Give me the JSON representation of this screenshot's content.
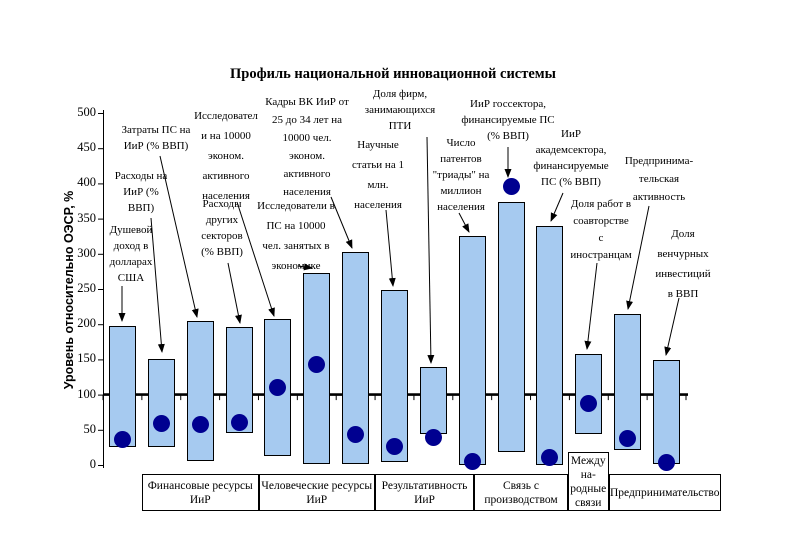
{
  "title": "Профиль национальной инновационной системы",
  "chart_data": {
    "type": "bar",
    "subtype": "floating-range-bars-with-dot-markers",
    "title": "Профиль национальной инновационной системы",
    "xlabel": "",
    "ylabel": "Уровень относительно ОЭСР, %",
    "ylim": [
      0,
      500
    ],
    "yticks": [
      0,
      50,
      100,
      150,
      200,
      250,
      300,
      350,
      400,
      450,
      500
    ],
    "reference_line": 100,
    "grid": false,
    "legend": false,
    "colors": {
      "bar_fill": "#A6CAF0",
      "bar_border": "#000000",
      "dot": "#000090",
      "axis": "#000000"
    },
    "indicators": [
      {
        "label": "Душевой доход в долларах США",
        "label_lines": "Душевой\nдоход в\nдолларах\nСША",
        "range_low": 25,
        "range_high": 197,
        "value": 36
      },
      {
        "label": "Расходы на ИиР (% ВВП)",
        "label_lines": "Расходы на\nИиР (%\nВВП)",
        "range_low": 26,
        "range_high": 150,
        "value": 59
      },
      {
        "label": "Затраты ПС на ИиР (% ВВП)",
        "label_lines": "Затраты ПС на\nИиР (% ВВП)",
        "range_low": 5,
        "range_high": 205,
        "value": 57
      },
      {
        "label": "Расходы других секторов (% ВВП)",
        "label_lines": "Расходы\nдругих\nсекторов\n(% ВВП)",
        "range_low": 46,
        "range_high": 196,
        "value": 60
      },
      {
        "label": "Исследователи на 10000 эконом. активного населения",
        "label_lines": "Исследовател\nи на 10000\nэконом.\nактивного\nнаселения",
        "range_low": 13,
        "range_high": 207,
        "value": 110
      },
      {
        "label": "Исследователи в ПС на 10000 чел. занятых в экономике",
        "label_lines": "Исследователи в\nПС на 10000\nчел. занятых в\nэкономике",
        "range_low": 1,
        "range_high": 273,
        "value": 143
      },
      {
        "label": "Кадры ВК ИиР от 25 до 34 лет на 10000 чел. эконом. активного населения",
        "label_lines": "Кадры ВК ИиР от\n25 до 34 лет на\n10000 чел.\nэконом.\nактивного\nнаселения",
        "range_low": 1,
        "range_high": 302,
        "value": 43
      },
      {
        "label": "Научные статьи на 1 млн. населения",
        "label_lines": "Научные\nстатьи на 1\nмлн.\nнаселения",
        "range_low": 4,
        "range_high": 248,
        "value": 26
      },
      {
        "label": "Доля фирм, занимающихся ПТИ",
        "label_lines": "Доля фирм,\nзанимающихся\nПТИ",
        "range_low": 44,
        "range_high": 139,
        "value": 39
      },
      {
        "label": "Число патентов \"триады\" на миллион населения",
        "label_lines": "Число\nпатентов\n\"триады\" на\nмиллион\nнаселения",
        "range_low": 0,
        "range_high": 325,
        "value": 5
      },
      {
        "label": "ИиР госсектора, финансируемые ПС (% ВВП)",
        "label_lines": "ИиР госсектора,\nфинансируемые ПС\n(% ВВП)",
        "range_low": 19,
        "range_high": 373,
        "value": 396
      },
      {
        "label": "ИиР академсектора, финансируемые ПС (% ВВП)",
        "label_lines": "ИиР\nакадемсектора,\nфинансируемые\nПС (% ВВП)",
        "range_low": 0,
        "range_high": 340,
        "value": 10
      },
      {
        "label": "Доля работ в соавторстве с иностранцами",
        "label_lines": "Доля работ в\nсоавторстве\nс\nиностранцам",
        "range_low": 44,
        "range_high": 158,
        "value": 87
      },
      {
        "label": "Предпринимательская активность",
        "label_lines": "Предпринима-\nтельская\nактивность",
        "range_low": 22,
        "range_high": 214,
        "value": 37
      },
      {
        "label": "Доля венчурных инвестиций в ВВП",
        "label_lines": "Доля\nвенчурных\nинвестиций\nв ВВП",
        "range_low": 2,
        "range_high": 149,
        "value": 4
      }
    ],
    "groups": [
      {
        "label": "Финансовые ресурсы ИиР",
        "label_lines": "Финансовые ресурсы\nИиР",
        "indicator_indexes": [
          2,
          3,
          4
        ]
      },
      {
        "label": "Человеческие ресурсы ИиР",
        "label_lines": "Человеческие ресурсы\nИиР",
        "indicator_indexes": [
          5,
          6,
          7
        ]
      },
      {
        "label": "Результативность ИиР",
        "label_lines": "Результативность\nИиР",
        "indicator_indexes": [
          8,
          9,
          10
        ]
      },
      {
        "label": "Связь с производством",
        "label_lines": "Связь с\nпроизводством",
        "indicator_indexes": [
          11,
          12
        ]
      },
      {
        "label": "Международные связи",
        "label_lines": "Между\nна-\nродные\nсвязи",
        "indicator_indexes": [
          13
        ]
      },
      {
        "label": "Предпринимательство",
        "label_lines": "Предпринимательство",
        "indicator_indexes": [
          14,
          15
        ]
      }
    ]
  }
}
